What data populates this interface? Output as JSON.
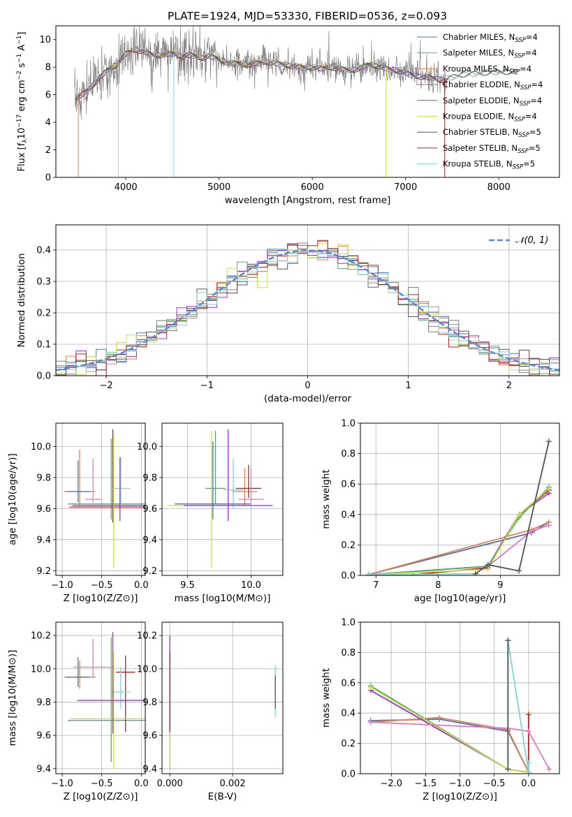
{
  "figure": {
    "title": "PLATE=1924, MJD=53330, FIBERID=0536, z=0.093"
  },
  "colors": {
    "Chabrier MILES": "#4c72b0",
    "Salpeter MILES": "#55a868",
    "Kroupa MILES": "#dd8452",
    "Chabrier ELODIE": "#7f7f7f",
    "Salpeter ELODIE": "#9b30d0",
    "Kroupa ELODIE": "#c8e04a",
    "Chabrier STELIB": "#555555",
    "Salpeter STELIB": "#b22222",
    "Kroupa STELIB": "#7fd4d8",
    "pink": "#e377c2",
    "gauss": "#5b8bd6"
  },
  "chart_data": [
    {
      "id": "spectrum",
      "type": "line",
      "xlabel": "wavelength [Angstrom, rest frame]",
      "ylabel": "Flux [f_λ 10^-17 erg cm^-2 s^-1 A^-1]",
      "ylabel_parts": {
        "a": "Flux [f",
        "b": "λ",
        "c": "10",
        "d": "−17",
        "e": " erg cm",
        "f": "−2",
        "g": " s",
        "h": "−1",
        "i": " A",
        "j": "−1",
        "k": "]"
      },
      "xlim": [
        3250,
        8650
      ],
      "ylim": [
        0,
        11
      ],
      "xticks": [
        "4000",
        "5000",
        "6000",
        "7000",
        "8000"
      ],
      "xtick_values": [
        4000,
        5000,
        6000,
        7000,
        8000
      ],
      "yticks": [
        "0",
        "2",
        "4",
        "6",
        "8",
        "10"
      ],
      "ytick_values": [
        0,
        2,
        4,
        6,
        8,
        10
      ],
      "legend_position": "top-right",
      "legend": [
        {
          "pre": "Chabrier MILES, N",
          "sub": "SSP",
          "post": "=4",
          "color": "#4c72b0"
        },
        {
          "pre": "Salpeter MILES, N",
          "sub": "SSP",
          "post": "=4",
          "color": "#55a868"
        },
        {
          "pre": "Kroupa MILES, N",
          "sub": "SSP",
          "post": "=4",
          "color": "#dd8452"
        },
        {
          "pre": "Chabrier ELODIE, N",
          "sub": "SSP",
          "post": "=4",
          "color": "#7f7f7f"
        },
        {
          "pre": "Salpeter ELODIE, N",
          "sub": "SSP",
          "post": "=4",
          "color": "#9b30d0"
        },
        {
          "pre": "Kroupa ELODIE, N",
          "sub": "SSP",
          "post": "=4",
          "color": "#c8e04a"
        },
        {
          "pre": "Chabrier STELIB, N",
          "sub": "SSP",
          "post": "=5",
          "color": "#555555"
        },
        {
          "pre": "Salpeter STELIB, N",
          "sub": "SSP",
          "post": "=5",
          "color": "#b22222"
        },
        {
          "pre": "Kroupa STELIB, N",
          "sub": "SSP",
          "post": "=5",
          "color": "#7fd4d8"
        }
      ],
      "model_curve": {
        "x": [
          3450,
          3600,
          3700,
          3800,
          3900,
          4000,
          4100,
          4200,
          4300,
          4400,
          4500,
          4600,
          4700,
          4800,
          4900,
          5000,
          5100,
          5200,
          5300,
          5400,
          5500,
          5600,
          5700,
          5800,
          5900,
          6000,
          6100,
          6200,
          6300,
          6400,
          6500,
          6600,
          6700,
          6800,
          6900,
          7000,
          7100,
          7200,
          7300,
          7400
        ],
        "y": [
          5.6,
          6.4,
          7.1,
          7.8,
          8.2,
          9.0,
          9.3,
          9.1,
          8.9,
          8.9,
          9.0,
          8.8,
          8.9,
          8.7,
          8.8,
          8.6,
          8.3,
          8.3,
          8.2,
          8.3,
          8.4,
          8.3,
          8.2,
          8.1,
          8.0,
          8.0,
          7.9,
          8.0,
          7.9,
          7.8,
          7.9,
          8.2,
          8.1,
          7.9,
          7.8,
          7.6,
          7.4,
          7.3,
          7.2,
          7.1
        ]
      },
      "model_curve_2": {
        "x": [
          7400,
          7600,
          7800,
          8000,
          8200
        ],
        "y": [
          7.1,
          7.5,
          7.6,
          7.7,
          7.7
        ]
      }
    },
    {
      "id": "residuals",
      "type": "line",
      "xlabel": "(data-model)/error",
      "ylabel": "Normed distribution",
      "xlim": [
        -2.5,
        2.5
      ],
      "ylim": [
        0,
        0.48
      ],
      "xticks": [
        "−2",
        "−1",
        "0",
        "1",
        "2"
      ],
      "xtick_values": [
        -2,
        -1,
        0,
        1,
        2
      ],
      "yticks": [
        "0.0",
        "0.1",
        "0.2",
        "0.3",
        "0.4"
      ],
      "ytick_values": [
        0,
        0.1,
        0.2,
        0.3,
        0.4
      ],
      "legend_position": "top-right",
      "gauss_label": "𝒩(0, 1)",
      "histogram_bin_width": 0.1,
      "histogram_start": -2.5
    },
    {
      "id": "age_vs_Z",
      "type": "scatter",
      "xlabel": "Z [log10(Z/Z⊙)]",
      "ylabel": "age  [log10(age/yr)]",
      "xlim": [
        -1.08,
        0.05
      ],
      "ylim": [
        9.17,
        10.15
      ],
      "xticks": [
        "−1.0",
        "−0.5",
        "0.0"
      ],
      "xtick_values": [
        -1.0,
        -0.5,
        0.0
      ],
      "yticks": [
        "9.2",
        "9.4",
        "9.6",
        "9.8",
        "10.0"
      ],
      "ytick_values": [
        9.2,
        9.4,
        9.6,
        9.8,
        10.0
      ],
      "points": [
        {
          "x": -0.78,
          "y": 9.71,
          "xerr": 0.2,
          "yerr_lo": 0.09,
          "yerr_hi": 0.27,
          "color": "#dd8452"
        },
        {
          "x": -0.8,
          "y": 9.71,
          "xerr": 0.15,
          "yerr_lo": 0.07,
          "yerr_hi": 0.2,
          "color": "#4c72b0"
        },
        {
          "x": -0.38,
          "y": 9.63,
          "xerr": 0.55,
          "yerr_lo": 0.1,
          "yerr_hi": 0.42,
          "color": "#55a868"
        },
        {
          "x": -0.36,
          "y": 9.61,
          "xerr": 0.55,
          "yerr_lo": 0.1,
          "yerr_hi": 0.5,
          "color": "#b22222"
        },
        {
          "x": -0.35,
          "y": 9.62,
          "xerr": 0.5,
          "yerr_lo": 0.4,
          "yerr_hi": 0.45,
          "color": "#c8e04a"
        },
        {
          "x": -0.26,
          "y": 9.73,
          "xerr": 0.12,
          "yerr_lo": 0.1,
          "yerr_hi": 0.2,
          "color": "#7fd4d8"
        },
        {
          "x": -0.61,
          "y": 9.66,
          "xerr": 0.1,
          "yerr_lo": 0.02,
          "yerr_hi": 0.26,
          "color": "#e377c2"
        },
        {
          "x": -0.27,
          "y": 9.62,
          "xerr": 0.6,
          "yerr_lo": 0.1,
          "yerr_hi": 0.31,
          "color": "#9b30d0"
        }
      ]
    },
    {
      "id": "age_vs_mass",
      "type": "scatter",
      "xlabel": "mass [log10(M/M⊙)]",
      "ylabel": "",
      "xlim": [
        9.3,
        10.25
      ],
      "ylim": [
        9.17,
        10.15
      ],
      "xticks": [
        "9.5",
        "10.0"
      ],
      "xtick_values": [
        9.5,
        10.0
      ],
      "yticks": [
        "9.2",
        "9.4",
        "9.6",
        "9.8",
        "10.0"
      ],
      "ytick_values": [
        9.2,
        9.4,
        9.6,
        9.8,
        10.0
      ],
      "points": [
        {
          "x": 9.95,
          "y": 9.71,
          "xerr": 0.1,
          "yerr_lo": 0.09,
          "yerr_hi": 0.15,
          "color": "#dd8452"
        },
        {
          "x": 9.72,
          "y": 9.73,
          "xerr": 0.08,
          "yerr_lo": 0.1,
          "yerr_hi": 0.37,
          "color": "#55a868"
        },
        {
          "x": 9.98,
          "y": 9.73,
          "xerr": 0.1,
          "yerr_lo": 0.06,
          "yerr_hi": 0.15,
          "color": "#b22222"
        },
        {
          "x": 9.69,
          "y": 9.62,
          "xerr": 0.35,
          "yerr_lo": 0.4,
          "yerr_hi": 0.48,
          "color": "#c8e04a"
        },
        {
          "x": 9.86,
          "y": 9.72,
          "xerr": 0.08,
          "yerr_lo": 0.12,
          "yerr_hi": 0.2,
          "color": "#7fd4d8"
        },
        {
          "x": 10.0,
          "y": 9.66,
          "xerr": 0.1,
          "yerr_lo": 0.02,
          "yerr_hi": 0.2,
          "color": "#e377c2"
        },
        {
          "x": 9.82,
          "y": 9.62,
          "xerr": 0.35,
          "yerr_lo": 0.1,
          "yerr_hi": 0.49,
          "color": "#9b30d0"
        },
        {
          "x": 9.7,
          "y": 9.63,
          "xerr": 0.3,
          "yerr_lo": 0.1,
          "yerr_hi": 0.4,
          "color": "#4c72b0"
        }
      ]
    },
    {
      "id": "massweight_vs_age",
      "type": "line",
      "xlabel": "age  [log10(age/yr)]",
      "ylabel": "mass weight",
      "xlim": [
        6.75,
        9.95
      ],
      "ylim": [
        0,
        1.0
      ],
      "xticks": [
        "7",
        "8",
        "9"
      ],
      "xtick_values": [
        7,
        8,
        9
      ],
      "yticks": [
        "0.0",
        "0.2",
        "0.4",
        "0.6",
        "0.8",
        "1.0"
      ],
      "ytick_values": [
        0,
        0.2,
        0.4,
        0.6,
        0.8,
        1.0
      ],
      "series": [
        {
          "color": "#4c72b0",
          "x": [
            6.88,
            9.5,
            9.78
          ],
          "y": [
            0.005,
            0.28,
            0.35
          ]
        },
        {
          "color": "#dd8452",
          "x": [
            6.88,
            9.5,
            9.78
          ],
          "y": [
            0.005,
            0.3,
            0.35
          ]
        },
        {
          "color": "#b22222",
          "x": [
            7.6,
            8.8,
            9.3,
            9.78
          ],
          "y": [
            0.005,
            0.05,
            0.4,
            0.56
          ]
        },
        {
          "color": "#9b30d0",
          "x": [
            6.88,
            8.8,
            9.3,
            9.78
          ],
          "y": [
            0.005,
            0.06,
            0.4,
            0.54
          ]
        },
        {
          "color": "#55a868",
          "x": [
            6.88,
            8.8,
            9.3,
            9.78
          ],
          "y": [
            0.005,
            0.06,
            0.38,
            0.58
          ]
        },
        {
          "color": "#c8e04a",
          "x": [
            6.88,
            8.8,
            9.3,
            9.78
          ],
          "y": [
            0.005,
            0.04,
            0.4,
            0.57
          ]
        },
        {
          "color": "#e377c2",
          "x": [
            8.8,
            9.5,
            9.78
          ],
          "y": [
            0.06,
            0.29,
            0.33
          ]
        },
        {
          "color": "#7fd4d8",
          "x": [
            6.88,
            8.6,
            8.8,
            9.3,
            9.78
          ],
          "y": [
            0.005,
            0.01,
            0.07,
            0.03,
            0.88
          ]
        },
        {
          "color": "#555555",
          "x": [
            8.6,
            8.8,
            9.3,
            9.78
          ],
          "y": [
            0.01,
            0.07,
            0.03,
            0.88
          ]
        }
      ]
    },
    {
      "id": "mass_vs_Z",
      "type": "scatter",
      "xlabel": "Z [log10(Z/Z⊙)]",
      "ylabel": "mass [log10(M/M⊙)]",
      "xlim": [
        -1.08,
        0.05
      ],
      "ylim": [
        9.37,
        10.28
      ],
      "xticks": [
        "−1.0",
        "−0.5",
        "0.0"
      ],
      "xtick_values": [
        -1.0,
        -0.5,
        0.0
      ],
      "yticks": [
        "9.4",
        "9.6",
        "9.8",
        "10.0",
        "10.2"
      ],
      "ytick_values": [
        9.4,
        9.6,
        9.8,
        10.0,
        10.2
      ],
      "points": [
        {
          "x": -0.78,
          "y": 9.95,
          "xerr": 0.2,
          "yerr_lo": 0.07,
          "yerr_hi": 0.1,
          "color": "#dd8452"
        },
        {
          "x": -0.8,
          "y": 9.95,
          "xerr": 0.15,
          "yerr_lo": 0.06,
          "yerr_hi": 0.12,
          "color": "#4c72b0"
        },
        {
          "x": -0.38,
          "y": 9.69,
          "xerr": 0.55,
          "yerr_lo": 0.25,
          "yerr_hi": 0.5,
          "color": "#55a868"
        },
        {
          "x": -0.2,
          "y": 9.98,
          "xerr": 0.12,
          "yerr_lo": 0.36,
          "yerr_hi": 0.1,
          "color": "#b22222"
        },
        {
          "x": -0.35,
          "y": 9.7,
          "xerr": 0.55,
          "yerr_lo": 0.3,
          "yerr_hi": 0.4,
          "color": "#c8e04a"
        },
        {
          "x": -0.26,
          "y": 9.86,
          "xerr": 0.12,
          "yerr_lo": 0.1,
          "yerr_hi": 0.15,
          "color": "#7fd4d8"
        },
        {
          "x": -0.61,
          "y": 10.01,
          "xerr": 0.25,
          "yerr_lo": 0.06,
          "yerr_hi": 0.17,
          "color": "#e377c2"
        },
        {
          "x": -0.36,
          "y": 9.81,
          "xerr": 0.45,
          "yerr_lo": 0.2,
          "yerr_hi": 0.41,
          "color": "#9b30d0"
        }
      ]
    },
    {
      "id": "mass_vs_EBV",
      "type": "scatter",
      "xlabel": "E(B-V)",
      "ylabel": "",
      "xlim": [
        -0.00025,
        0.0036
      ],
      "ylim": [
        9.37,
        10.28
      ],
      "xticks": [
        "0.000",
        "0.002"
      ],
      "xtick_values": [
        0.0,
        0.002
      ],
      "yticks": [
        "9.4",
        "9.6",
        "9.8",
        "10.0",
        "10.2"
      ],
      "ytick_values": [
        9.4,
        9.6,
        9.8,
        10.0,
        10.2
      ],
      "points": [
        {
          "x": 0.0,
          "y": 9.8,
          "xerr": 0.0,
          "yerr_lo": 0.4,
          "yerr_hi": 0.4,
          "color": "#9b30d0"
        },
        {
          "x": 0.0,
          "y": 9.8,
          "xerr": 0.0,
          "yerr_lo": 0.2,
          "yerr_hi": 0.3,
          "color": "#b22222"
        },
        {
          "x": 0.0,
          "y": 9.6,
          "xerr": 0.0,
          "yerr_lo": 0.2,
          "yerr_hi": 0.02,
          "color": "#c8e04a"
        },
        {
          "x": 0.00336,
          "y": 9.86,
          "xerr": 0.0,
          "yerr_lo": 0.15,
          "yerr_hi": 0.16,
          "color": "#7fd4d8"
        },
        {
          "x": 0.00336,
          "y": 9.86,
          "xerr": 0.0,
          "yerr_lo": 0.1,
          "yerr_hi": 0.1,
          "color": "#555555"
        }
      ]
    },
    {
      "id": "massweight_vs_Z",
      "type": "line",
      "xlabel": "Z [log10(Z/Z⊙)]",
      "ylabel": "mass weight",
      "xlim": [
        -2.45,
        0.45
      ],
      "ylim": [
        0,
        1.0
      ],
      "xticks": [
        "−2.0",
        "−1.5",
        "−1.0",
        "−0.5",
        "0.0"
      ],
      "xtick_values": [
        -2.0,
        -1.5,
        -1.0,
        -0.5,
        0.0
      ],
      "yticks": [
        "0.0",
        "0.2",
        "0.4",
        "0.6",
        "0.8",
        "1.0"
      ],
      "ytick_values": [
        0,
        0.2,
        0.4,
        0.6,
        0.8,
        1.0
      ],
      "series": [
        {
          "color": "#4c72b0",
          "x": [
            -2.3,
            -1.3,
            -0.3,
            0.0
          ],
          "y": [
            0.35,
            0.36,
            0.28,
            0.01
          ]
        },
        {
          "color": "#dd8452",
          "x": [
            -2.3,
            -1.3,
            -0.3,
            0.0
          ],
          "y": [
            0.34,
            0.37,
            0.29,
            0.01
          ]
        },
        {
          "color": "#55a868",
          "x": [
            -2.3,
            -0.3,
            0.0
          ],
          "y": [
            0.58,
            0.03,
            0.01
          ]
        },
        {
          "color": "#9b30d0",
          "x": [
            -2.3,
            -0.3,
            0.0
          ],
          "y": [
            0.55,
            0.03,
            0.01
          ]
        },
        {
          "color": "#c8e04a",
          "x": [
            -2.3,
            -0.3,
            0.0,
            0.0
          ],
          "y": [
            0.57,
            0.03,
            0.01,
            0.4
          ]
        },
        {
          "color": "#b22222",
          "x": [
            0.0,
            0.0
          ],
          "y": [
            0.01,
            0.39
          ]
        },
        {
          "color": "#e377c2",
          "x": [
            -2.3,
            -0.3,
            0.0,
            0.3
          ],
          "y": [
            0.34,
            0.3,
            0.28,
            0.03
          ]
        },
        {
          "color": "#7fd4d8",
          "x": [
            -0.3,
            -0.3,
            0.0,
            0.0
          ],
          "y": [
            0.03,
            0.88,
            0.01,
            0.07
          ]
        },
        {
          "color": "#555555",
          "x": [
            -0.3,
            -0.3
          ],
          "y": [
            0.03,
            0.88
          ]
        }
      ]
    }
  ]
}
